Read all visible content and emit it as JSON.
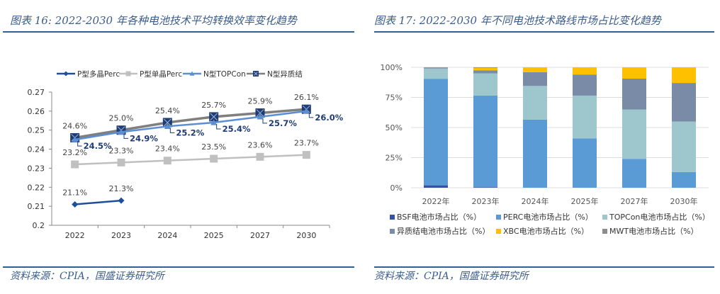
{
  "left": {
    "title": "图表 16:  2022-2030 年各种电池技术平均转换效率变化趋势",
    "source": "资料来源：CPIA，国盛证券研究所"
  },
  "right": {
    "title": "图表 17:  2022-2030 年不同电池技术路线市场占比变化趋势",
    "source": "资料来源：CPIA，国盛证券研究所"
  },
  "chart_data": [
    {
      "type": "line",
      "title": "2022-2030 年各种电池技术平均转换效率变化趋势",
      "categories": [
        "2022",
        "2023",
        "2024",
        "2025",
        "2027",
        "2030"
      ],
      "ylim": [
        0.2,
        0.27
      ],
      "yticks": [
        "0.2",
        "0.21",
        "0.22",
        "0.23",
        "0.24",
        "0.25",
        "0.26",
        "0.27"
      ],
      "ytick_values": [
        0.2,
        0.21,
        0.22,
        0.23,
        0.24,
        0.25,
        0.26,
        0.27
      ],
      "legend_position": "top",
      "series": [
        {
          "name": "P型多晶Perc",
          "color": "#1f4e9b",
          "marker": "diamond",
          "values": [
            0.211,
            0.213,
            null,
            null,
            null,
            null
          ],
          "labels": [
            "21.1%",
            "21.3%",
            null,
            null,
            null,
            null
          ]
        },
        {
          "name": "P型单晶Perc",
          "color": "#c0c0c0",
          "marker": "square",
          "values": [
            0.232,
            0.233,
            0.234,
            0.235,
            0.236,
            0.237
          ],
          "labels": [
            "23.2%",
            "23.3%",
            "23.4%",
            "23.5%",
            "23.6%",
            "23.7%"
          ]
        },
        {
          "name": "N型TOPCon",
          "color": "#5b8fd1",
          "marker": "triangle",
          "values": [
            0.245,
            0.249,
            0.252,
            0.254,
            0.257,
            0.26
          ],
          "labels": [
            "24.5%",
            "24.9%",
            "25.2%",
            "25.4%",
            "25.7%",
            "26.0%"
          ]
        },
        {
          "name": "N型异质结",
          "color": "#7f7f7f",
          "marker": "x-square",
          "values": [
            0.246,
            0.25,
            0.254,
            0.257,
            0.259,
            0.261
          ],
          "labels": [
            "24.6%",
            "25.0%",
            "25.4%",
            "25.7%",
            "25.9%",
            "26.1%"
          ]
        }
      ]
    },
    {
      "type": "bar",
      "stacked": true,
      "title": "2022-2030 年不同电池技术路线市场占比变化趋势",
      "categories": [
        "2022年",
        "2023年",
        "2024年",
        "2025年",
        "2027年",
        "2030年"
      ],
      "ylim": [
        0,
        100
      ],
      "yticks": [
        "0%",
        "25%",
        "50%",
        "75%",
        "100%"
      ],
      "ytick_values": [
        0,
        25,
        50,
        75,
        100
      ],
      "grid": true,
      "legend_position": "bottom",
      "series": [
        {
          "name": "BSF电池市场占比（%）",
          "color": "#3553a0",
          "values": [
            2,
            0.5,
            0,
            0,
            0,
            0
          ]
        },
        {
          "name": "PERC电池市场占比（%）",
          "color": "#5b9bd5",
          "values": [
            88.5,
            76,
            56.5,
            41,
            24,
            13
          ]
        },
        {
          "name": "TOPCon电池市场占比（%）",
          "color": "#9dc7cd",
          "values": [
            8.5,
            18.5,
            28,
            35.5,
            41,
            42
          ]
        },
        {
          "name": "异质结电池市场占比（%）",
          "color": "#7a8ba8",
          "values": [
            0.5,
            2.5,
            11.5,
            17.5,
            25.6,
            32
          ]
        },
        {
          "name": "XBC电池市场占比（%）",
          "color": "#ffc000",
          "values": [
            0,
            2,
            4,
            6,
            9.4,
            13
          ]
        },
        {
          "name": "MWT电池市场占比（%）",
          "color": "#8c8c8c",
          "values": [
            0.5,
            0.5,
            0,
            0,
            0,
            0
          ]
        }
      ]
    }
  ]
}
